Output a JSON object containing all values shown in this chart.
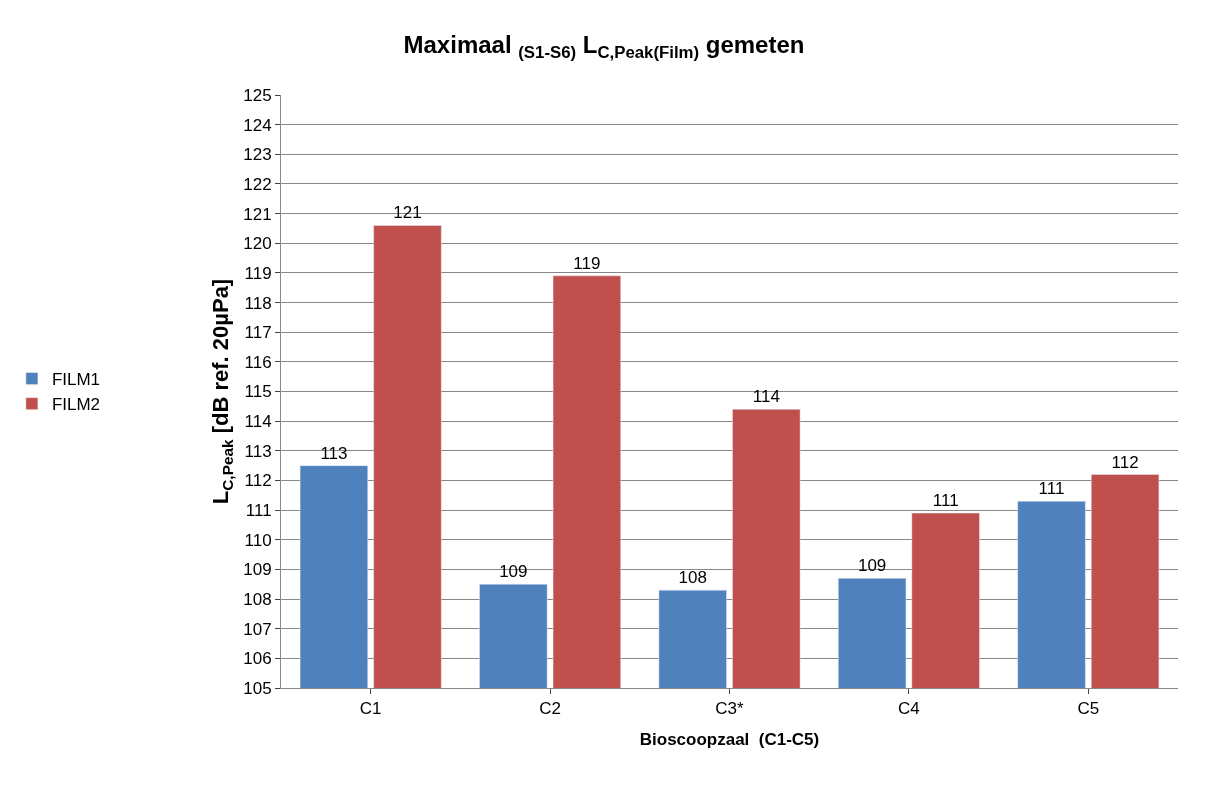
{
  "chart_data": {
    "type": "bar",
    "title": "Maximaal $_{(S1-S6)}$ L$_{C,Peak(Film)}$ gemeten",
    "xlabel": "Bioscoopzaal  (C1-C5)",
    "ylabel": "L$_{C,Peak}$ [dB ref. 20µPa]",
    "categories": [
      "C1",
      "C2",
      "C3*",
      "C4",
      "C5"
    ],
    "series": [
      {
        "name": "FILM1",
        "color": "#4f81bd",
        "values": [
          112.5,
          108.5,
          108.3,
          108.7,
          111.3
        ],
        "value_labels": [
          "113",
          "109",
          "108",
          "109",
          "111"
        ]
      },
      {
        "name": "FILM2",
        "color": "#c0504d",
        "values": [
          120.6,
          118.9,
          114.4,
          110.9,
          112.2
        ],
        "value_labels": [
          "121",
          "119",
          "114",
          "111",
          "112"
        ]
      }
    ],
    "ylim": [
      105,
      125
    ],
    "yticks": [
      105,
      106,
      107,
      108,
      109,
      110,
      111,
      112,
      113,
      114,
      115,
      116,
      117,
      118,
      119,
      120,
      121,
      122,
      123,
      124,
      125
    ],
    "grid": "y",
    "legend": "left"
  }
}
